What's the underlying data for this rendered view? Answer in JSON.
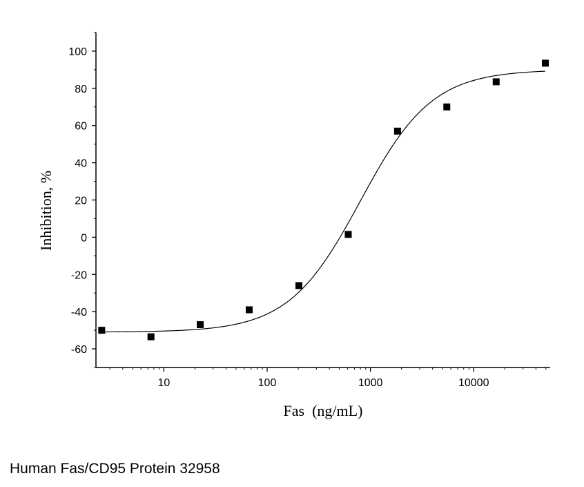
{
  "chart_data": {
    "type": "scatter",
    "title": "",
    "xlabel": "Fas  (ng/mL)",
    "ylabel": "Inhibition, %",
    "xscale": "log",
    "xlim": [
      2.2,
      55000
    ],
    "ylim": [
      -70,
      110
    ],
    "x_ticks": [
      10,
      100,
      1000,
      10000
    ],
    "x_tick_labels": [
      "10",
      "100",
      "1000",
      "10000"
    ],
    "y_ticks": [
      -60,
      -40,
      -20,
      0,
      20,
      40,
      60,
      80,
      100
    ],
    "y_tick_labels": [
      "-60",
      "-40",
      "-20",
      "0",
      "20",
      "40",
      "60",
      "80",
      "100"
    ],
    "grid": false,
    "series": [
      {
        "marker": "square",
        "x": [
          2.5,
          7.5,
          22.5,
          67,
          203,
          610,
          1830,
          5490,
          16500,
          49400
        ],
        "y": [
          -50,
          -53.5,
          -47,
          -39,
          -26,
          1.5,
          57,
          70,
          83.5,
          93.5
        ]
      },
      {
        "type": "line",
        "fit": "four-parameter logistic",
        "bottom": -51,
        "top": 90,
        "ec50": 800,
        "hill": 1.25
      }
    ]
  },
  "caption": "Human Fas/CD95 Protein 32958"
}
